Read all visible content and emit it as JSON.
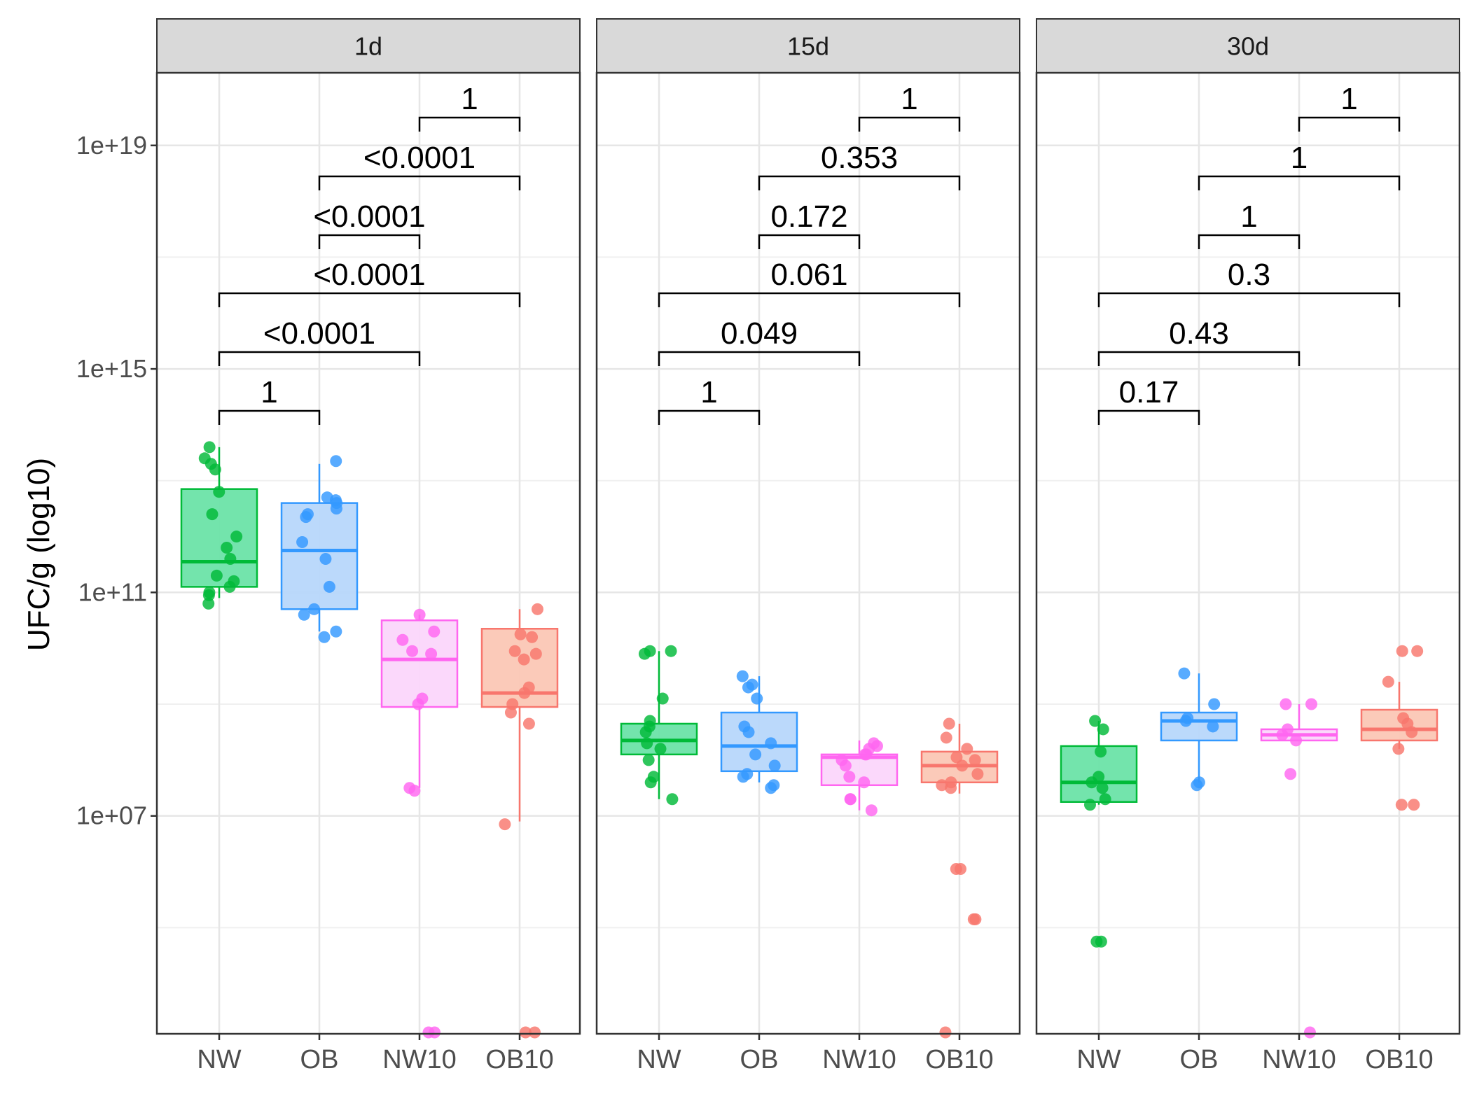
{
  "chart_data": {
    "type": "box",
    "ylabel": "UFC/g (log10)",
    "xlabel": "",
    "y_scale": "log10",
    "ylim_log10": [
      3.1,
      20.3
    ],
    "y_ticks": [
      {
        "label": "1e+07",
        "log10": 7
      },
      {
        "label": "1e+11",
        "log10": 11
      },
      {
        "label": "1e+15",
        "log10": 15
      },
      {
        "label": "1e+19",
        "log10": 19
      }
    ],
    "y_minor_log10": [
      5,
      9,
      13,
      17
    ],
    "categories": [
      "NW",
      "OB",
      "NW10",
      "OB10"
    ],
    "colors": {
      "NW": "#00BA38",
      "OB": "#3399FF",
      "NW10": "#FF66F0",
      "OB10": "#F8766D"
    },
    "fills": {
      "NW": "#6BE3A8",
      "OB": "#B7D7FB",
      "NW10": "#FBD6FB",
      "OB10": "#FBC7B5"
    },
    "panels": [
      {
        "label": "1d",
        "boxes": [
          {
            "group": "NW",
            "q1": 11.1,
            "median": 11.55,
            "q3": 12.85,
            "whisker_low": 10.9,
            "whisker_high": 13.6
          },
          {
            "group": "OB",
            "q1": 10.7,
            "median": 11.75,
            "q3": 12.6,
            "whisker_low": 10.3,
            "whisker_high": 13.3
          },
          {
            "group": "NW10",
            "q1": 8.95,
            "median": 9.8,
            "q3": 10.5,
            "whisker_low": 7.5,
            "whisker_high": 10.6
          },
          {
            "group": "OB10",
            "q1": 8.95,
            "median": 9.2,
            "q3": 10.35,
            "whisker_low": 6.9,
            "whisker_high": 10.7
          }
        ],
        "points": [
          {
            "group": "NW",
            "values": [
              13.6,
              13.4,
              13.3,
              13.2,
              12.8,
              12.4,
              12.0,
              11.8,
              11.6,
              11.3,
              11.2,
              11.1,
              11.0,
              10.95,
              10.8
            ]
          },
          {
            "group": "OB",
            "values": [
              13.35,
              12.7,
              12.65,
              12.6,
              12.5,
              12.4,
              12.35,
              11.9,
              11.6,
              11.1,
              10.7,
              10.6,
              10.3,
              10.2
            ]
          },
          {
            "group": "NW10",
            "values": [
              10.6,
              10.3,
              10.15,
              9.95,
              9.9,
              9.1,
              9.0,
              7.5,
              7.45,
              3.1,
              3.1
            ]
          },
          {
            "group": "OB10",
            "values": [
              10.7,
              10.25,
              10.2,
              9.95,
              9.9,
              9.8,
              9.3,
              9.2,
              9.0,
              8.85,
              8.65,
              6.85,
              3.1,
              3.1
            ]
          }
        ],
        "comparisons": [
          {
            "from": "NW",
            "to": "OB",
            "label": "1"
          },
          {
            "from": "NW",
            "to": "NW10",
            "label": "<0.0001"
          },
          {
            "from": "NW",
            "to": "OB10",
            "label": "<0.0001"
          },
          {
            "from": "OB",
            "to": "NW10",
            "label": "<0.0001"
          },
          {
            "from": "OB",
            "to": "OB10",
            "label": "<0.0001"
          },
          {
            "from": "NW10",
            "to": "OB10",
            "label": "1"
          }
        ]
      },
      {
        "label": "15d",
        "boxes": [
          {
            "group": "NW",
            "q1": 8.1,
            "median": 8.35,
            "q3": 8.65,
            "whisker_low": 7.3,
            "whisker_high": 9.95
          },
          {
            "group": "OB",
            "q1": 7.8,
            "median": 8.25,
            "q3": 8.85,
            "whisker_low": 7.6,
            "whisker_high": 9.5
          },
          {
            "group": "NW10",
            "q1": 7.55,
            "median": 8.05,
            "q3": 8.1,
            "whisker_low": 7.1,
            "whisker_high": 8.35
          },
          {
            "group": "OB10",
            "q1": 7.6,
            "median": 7.9,
            "q3": 8.15,
            "whisker_low": 7.4,
            "whisker_high": 8.65
          }
        ],
        "points": [
          {
            "group": "NW",
            "values": [
              9.95,
              9.95,
              9.9,
              9.1,
              8.7,
              8.6,
              8.5,
              8.3,
              8.2,
              8.0,
              7.7,
              7.6,
              7.3
            ]
          },
          {
            "group": "OB",
            "values": [
              9.5,
              9.35,
              9.3,
              9.1,
              8.6,
              8.5,
              8.3,
              8.1,
              7.9,
              7.75,
              7.7,
              7.55,
              7.5
            ]
          },
          {
            "group": "NW10",
            "values": [
              8.3,
              8.25,
              8.2,
              8.1,
              8.1,
              8.0,
              7.9,
              7.7,
              7.6,
              7.3,
              7.3,
              7.1
            ]
          },
          {
            "group": "OB10",
            "values": [
              8.65,
              8.4,
              8.2,
              8.05,
              8.0,
              7.9,
              7.75,
              7.6,
              7.55,
              7.5,
              6.05,
              6.05,
              5.15,
              5.15,
              3.1
            ]
          }
        ],
        "comparisons": [
          {
            "from": "NW",
            "to": "OB",
            "label": "1"
          },
          {
            "from": "NW",
            "to": "NW10",
            "label": "0.049"
          },
          {
            "from": "NW",
            "to": "OB10",
            "label": "0.061"
          },
          {
            "from": "OB",
            "to": "NW10",
            "label": "0.172"
          },
          {
            "from": "OB",
            "to": "OB10",
            "label": "0.353"
          },
          {
            "from": "NW10",
            "to": "OB10",
            "label": "1"
          }
        ]
      },
      {
        "label": "30d",
        "boxes": [
          {
            "group": "NW",
            "q1": 7.25,
            "median": 7.6,
            "q3": 8.25,
            "whisker_low": 7.2,
            "whisker_high": 8.7
          },
          {
            "group": "OB",
            "q1": 8.35,
            "median": 8.7,
            "q3": 8.85,
            "whisker_low": 7.6,
            "whisker_high": 9.55
          },
          {
            "group": "NW10",
            "q1": 8.35,
            "median": 8.45,
            "q3": 8.55,
            "whisker_low": 8.35,
            "whisker_high": 9.0
          },
          {
            "group": "OB10",
            "q1": 8.35,
            "median": 8.55,
            "q3": 8.9,
            "whisker_low": 8.2,
            "whisker_high": 9.4
          }
        ],
        "points": [
          {
            "group": "NW",
            "values": [
              8.7,
              8.55,
              8.15,
              7.7,
              7.6,
              7.5,
              7.3,
              7.2,
              4.75,
              4.75
            ]
          },
          {
            "group": "OB",
            "values": [
              9.55,
              9.0,
              8.75,
              8.7,
              8.6,
              7.6,
              7.55
            ]
          },
          {
            "group": "NW10",
            "values": [
              9.0,
              9.0,
              8.55,
              8.45,
              8.35,
              7.75,
              3.1
            ]
          },
          {
            "group": "OB10",
            "values": [
              9.95,
              9.95,
              9.4,
              8.75,
              8.65,
              8.5,
              8.2,
              7.2,
              7.2
            ]
          }
        ],
        "comparisons": [
          {
            "from": "NW",
            "to": "OB",
            "label": "0.17"
          },
          {
            "from": "NW",
            "to": "NW10",
            "label": "0.43"
          },
          {
            "from": "NW",
            "to": "OB10",
            "label": "0.3"
          },
          {
            "from": "OB",
            "to": "NW10",
            "label": "1"
          },
          {
            "from": "OB",
            "to": "OB10",
            "label": "1"
          },
          {
            "from": "NW10",
            "to": "OB10",
            "label": "1"
          }
        ]
      }
    ]
  }
}
